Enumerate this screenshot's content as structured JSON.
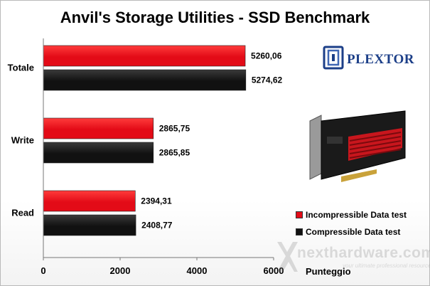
{
  "chart_data": {
    "type": "bar",
    "orientation": "horizontal",
    "title": "Anvil's Storage Utilities - SSD Benchmark",
    "xlabel": "Punteggio",
    "categories": [
      "Totale",
      "Write",
      "Read"
    ],
    "series": [
      {
        "name": "Incompressible Data test",
        "color": "#e30b17",
        "values": [
          5260.06,
          2865.75,
          2394.31
        ],
        "labels": [
          "5260,06",
          "2865,75",
          "2394,31"
        ]
      },
      {
        "name": "Compressible Data test",
        "color": "#111111",
        "values": [
          5274.62,
          2865.85,
          2408.77
        ],
        "labels": [
          "5274,62",
          "2865,85",
          "2408,77"
        ]
      }
    ],
    "xlim": [
      0,
      6000
    ],
    "xticks": [
      0,
      2000,
      4000,
      6000
    ],
    "grid": false,
    "legend_position": "right"
  },
  "branding": {
    "logo_text": "PLEXTOR",
    "watermark_text": "nexthardware.com",
    "watermark_tagline": "your ultimate professional resource"
  }
}
